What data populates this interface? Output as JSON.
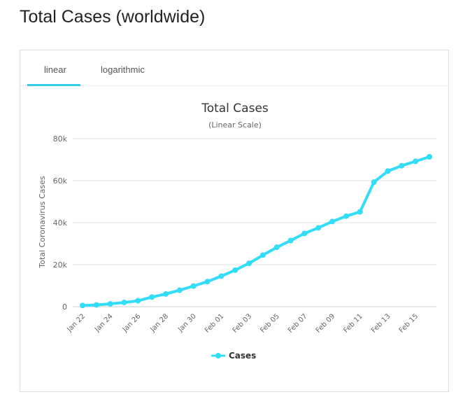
{
  "page": {
    "title": "Total Cases (worldwide)"
  },
  "tabs": [
    {
      "label": "linear",
      "active": true
    },
    {
      "label": "logarithmic",
      "active": false
    }
  ],
  "colors": {
    "series": "#33ddf8",
    "tab_active": "#33ccee",
    "grid": "#e6e6e6"
  },
  "chart_data": {
    "type": "line",
    "title": "Total Cases",
    "subtitle": "(Linear Scale)",
    "ylabel": "Total Coronavirus Cases",
    "xlabel": "",
    "ylim": [
      0,
      80000
    ],
    "yticks": [
      0,
      20000,
      40000,
      60000,
      80000
    ],
    "ytick_labels": [
      "0",
      "20k",
      "40k",
      "60k",
      "80k"
    ],
    "grid": true,
    "legend": "bottom-center",
    "x": [
      "Jan 22",
      "Jan 23",
      "Jan 24",
      "Jan 25",
      "Jan 26",
      "Jan 27",
      "Jan 28",
      "Jan 29",
      "Jan 30",
      "Jan 31",
      "Feb 01",
      "Feb 02",
      "Feb 03",
      "Feb 04",
      "Feb 05",
      "Feb 06",
      "Feb 07",
      "Feb 08",
      "Feb 09",
      "Feb 10",
      "Feb 11",
      "Feb 12",
      "Feb 13",
      "Feb 14",
      "Feb 15",
      "Feb 16"
    ],
    "xtick_labels": [
      "Jan 22",
      "Jan 24",
      "Jan 26",
      "Jan 28",
      "Jan 30",
      "Feb 01",
      "Feb 03",
      "Feb 05",
      "Feb 07",
      "Feb 09",
      "Feb 11",
      "Feb 13",
      "Feb 15"
    ],
    "series": [
      {
        "name": "Cases",
        "values": [
          580,
          845,
          1320,
          2015,
          2800,
          4580,
          6060,
          7820,
          9830,
          11950,
          14550,
          17390,
          20630,
          24550,
          28280,
          31480,
          34880,
          37560,
          40550,
          43100,
          45170,
          59280,
          64540,
          67100,
          69200,
          71330
        ]
      }
    ]
  }
}
